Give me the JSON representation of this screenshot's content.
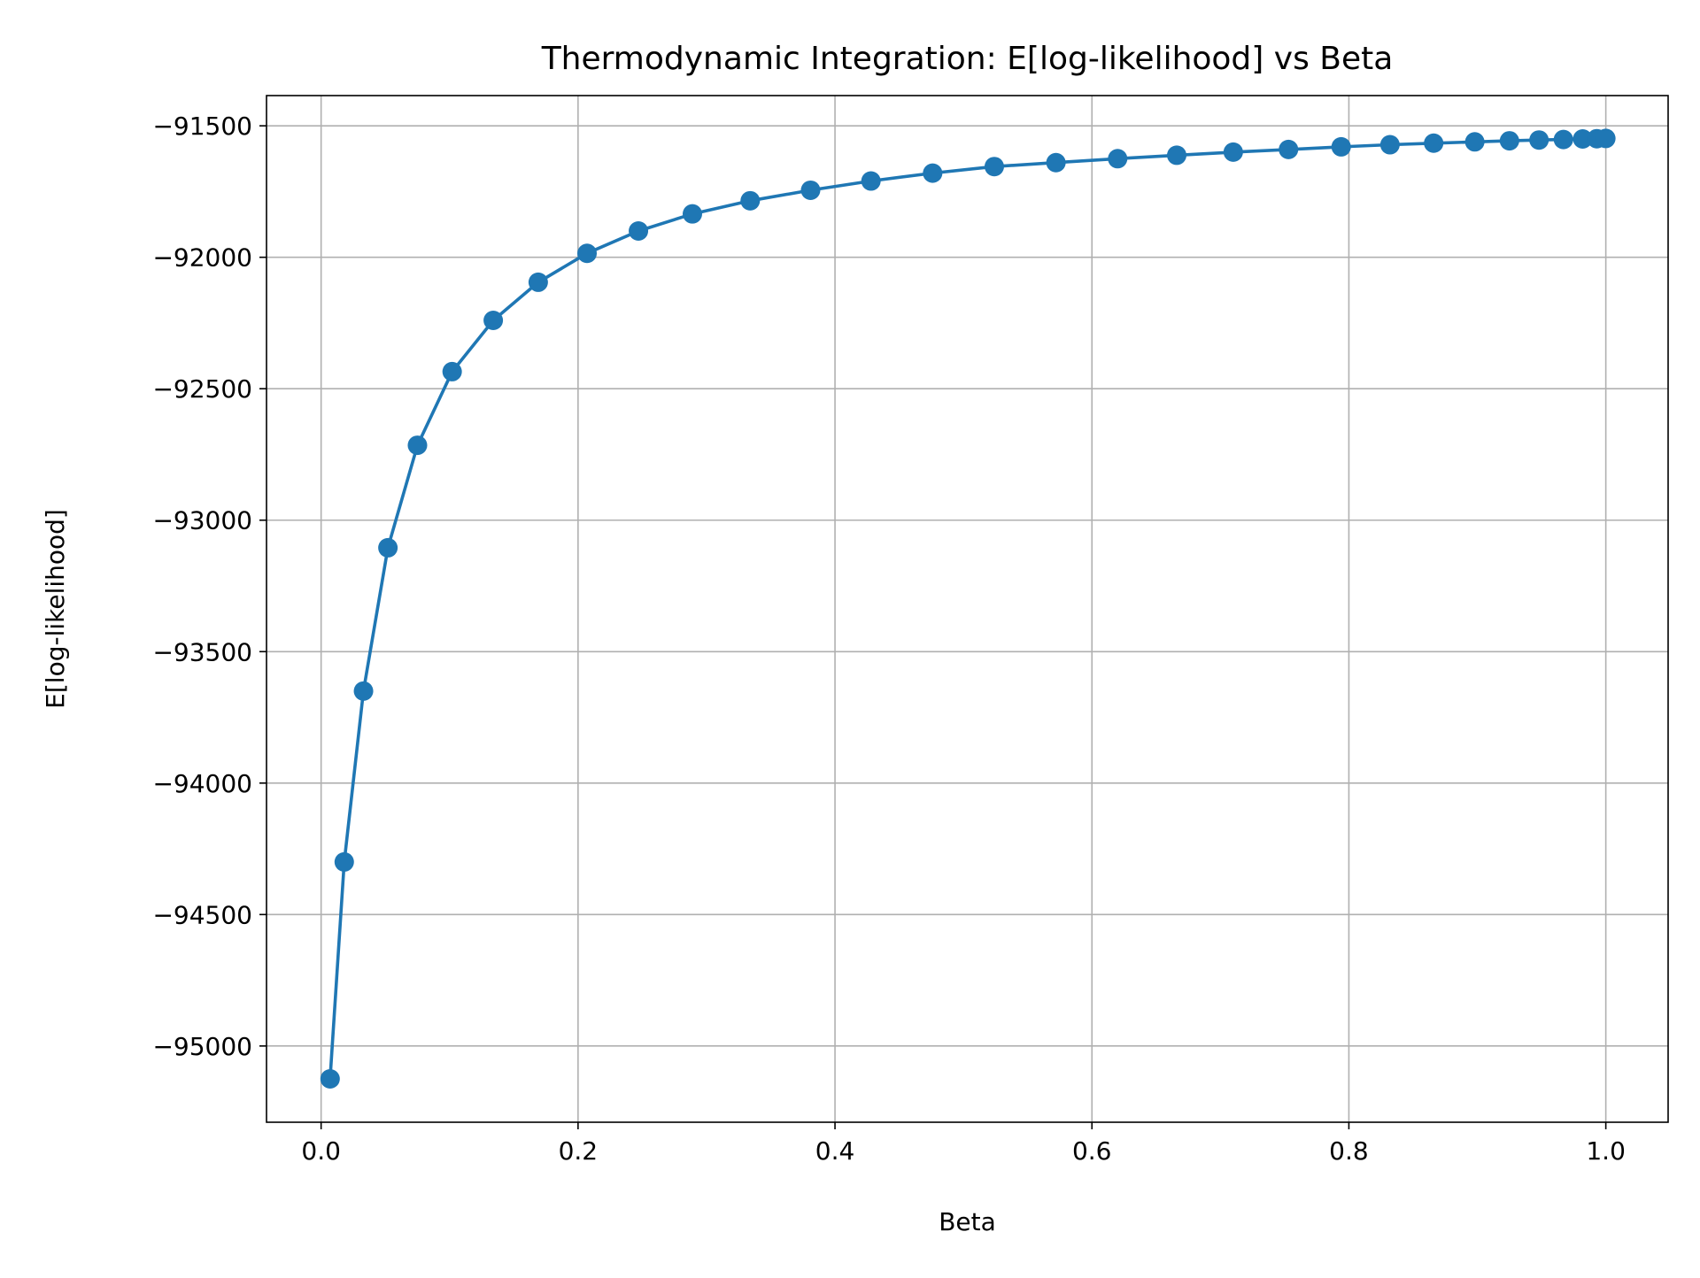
{
  "chart_data": {
    "type": "line",
    "title": "Thermodynamic Integration: E[log-likelihood] vs Beta",
    "xlabel": "Beta",
    "ylabel": "E[log-likelihood]",
    "xlim": [
      -0.0425,
      1.0485
    ],
    "ylim": [
      -95290,
      -91385
    ],
    "x_ticks": [
      0.0,
      0.2,
      0.4,
      0.6,
      0.8,
      1.0
    ],
    "x_tick_labels": [
      "0.0",
      "0.2",
      "0.4",
      "0.6",
      "0.8",
      "1.0"
    ],
    "y_ticks": [
      -95000,
      -94500,
      -94000,
      -93500,
      -93000,
      -92500,
      -92000,
      -91500
    ],
    "y_tick_labels": [
      "−95000",
      "−94500",
      "−94000",
      "−93500",
      "−93000",
      "−92500",
      "−92000",
      "−91500"
    ],
    "grid": true,
    "legend": "none",
    "colors": {
      "series": "#1f77b4",
      "grid": "#b0b0b0",
      "axes": "#000000"
    },
    "series": [
      {
        "marker": "circle",
        "x": [
          0.007,
          0.018,
          0.033,
          0.052,
          0.075,
          0.102,
          0.134,
          0.169,
          0.207,
          0.247,
          0.289,
          0.334,
          0.381,
          0.428,
          0.476,
          0.524,
          0.572,
          0.62,
          0.666,
          0.71,
          0.753,
          0.794,
          0.832,
          0.866,
          0.898,
          0.925,
          0.948,
          0.967,
          0.982,
          0.993,
          1.0
        ],
        "y": [
          -95125,
          -94300,
          -93650,
          -93105,
          -92715,
          -92435,
          -92240,
          -92095,
          -91985,
          -91900,
          -91835,
          -91785,
          -91745,
          -91710,
          -91680,
          -91655,
          -91640,
          -91625,
          -91612,
          -91600,
          -91590,
          -91580,
          -91572,
          -91566,
          -91561,
          -91557,
          -91554,
          -91552,
          -91550,
          -91549,
          -91548
        ]
      }
    ]
  }
}
